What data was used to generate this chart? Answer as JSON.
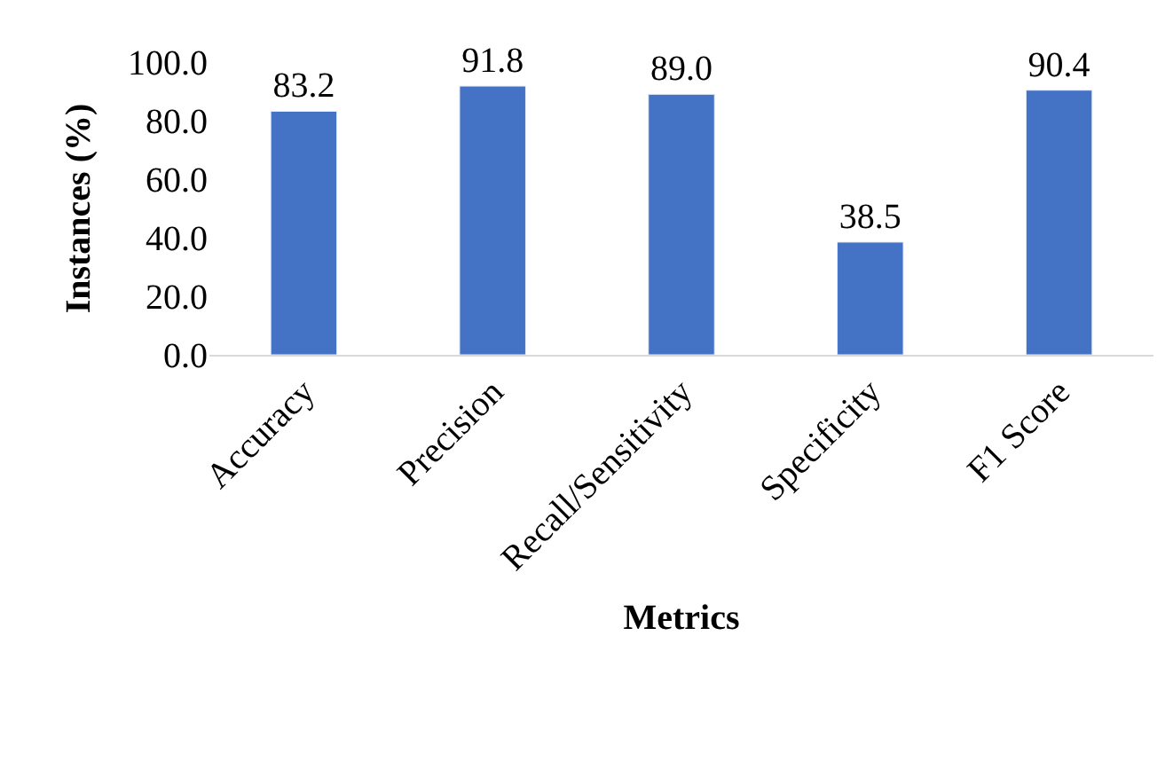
{
  "chart_data": {
    "type": "bar",
    "xlabel": "Metrics",
    "ylabel": "Instances (%)",
    "categories": [
      "Accuracy",
      "Precision",
      "Recall/Sensitivity",
      "Specificity",
      "F1 Score"
    ],
    "values": [
      83.2,
      91.8,
      89.0,
      38.5,
      90.4
    ],
    "value_labels": [
      "83.2",
      "91.8",
      "89.0",
      "38.5",
      "90.4"
    ],
    "color": "#4472c4",
    "ylim": [
      0,
      100
    ],
    "yticks": [
      {
        "value": 0,
        "label": "0.0"
      },
      {
        "value": 20,
        "label": "20.0"
      },
      {
        "value": 40,
        "label": "40.0"
      },
      {
        "value": 60,
        "label": "60.0"
      },
      {
        "value": 80,
        "label": "80.0"
      },
      {
        "value": 100,
        "label": "100.0"
      }
    ],
    "legend": false
  }
}
